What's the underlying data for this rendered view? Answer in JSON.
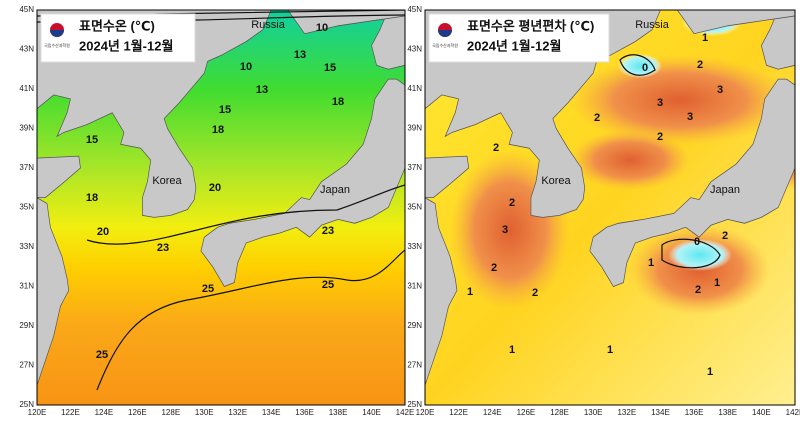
{
  "panels": [
    {
      "title": "표면수온 (℃)",
      "period": "2024년 1월-12월",
      "agency": "국립수산과학원",
      "places": {
        "russia": "Russia",
        "korea": "Korea",
        "japan": "Japan"
      },
      "contour_labels": [
        10,
        10,
        13,
        13,
        15,
        15,
        18,
        18,
        15,
        18,
        20,
        20,
        23,
        23,
        25,
        25,
        25
      ]
    },
    {
      "title": "표면수온 평년편차 (℃)",
      "period": "2024년 1월-12월",
      "agency": "국립수산과학원",
      "places": {
        "russia": "Russia",
        "korea": "Korea",
        "japan": "Japan"
      },
      "contour_labels": [
        1,
        0,
        2,
        3,
        3,
        3,
        2,
        2,
        2,
        2,
        3,
        2,
        2,
        0,
        2,
        1,
        1,
        2,
        1,
        1,
        1,
        1
      ]
    }
  ],
  "axes": {
    "lat_labels": [
      "45N",
      "43N",
      "41N",
      "39N",
      "37N",
      "35N",
      "33N",
      "31N",
      "29N",
      "27N",
      "25N"
    ],
    "lon_labels": [
      "120E",
      "122E",
      "124E",
      "126E",
      "128E",
      "130E",
      "132E",
      "134E",
      "136E",
      "138E",
      "140E",
      "142E"
    ]
  }
}
